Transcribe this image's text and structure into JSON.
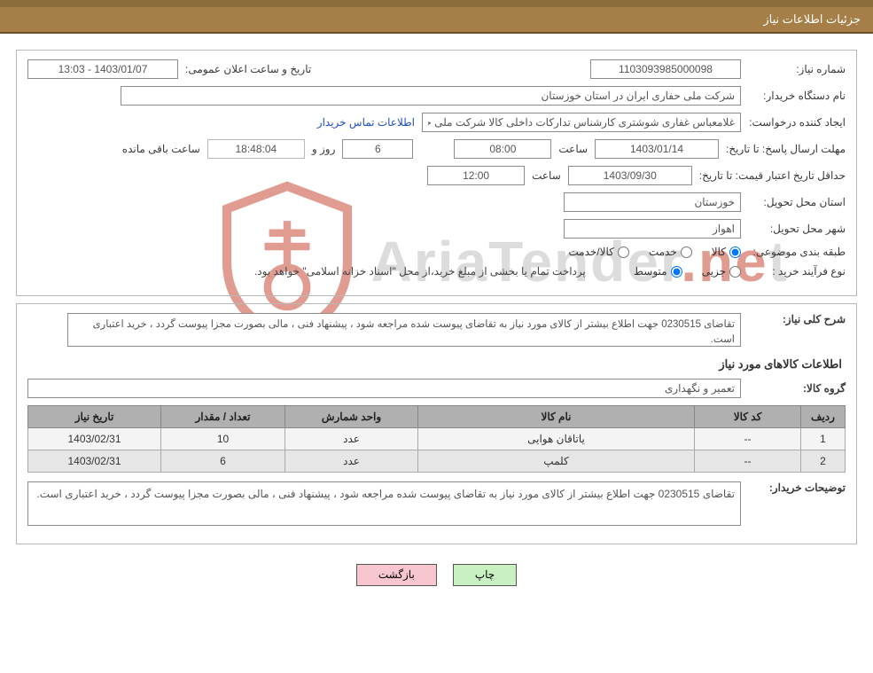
{
  "header": {
    "title": "جزئیات اطلاعات نیاز"
  },
  "need": {
    "number_label": "شماره نیاز:",
    "number": "1103093985000098",
    "announce_label": "تاریخ و ساعت اعلان عمومی:",
    "announce": "1403/01/07 - 13:03",
    "buyer_label": "نام دستگاه خریدار:",
    "buyer": "شرکت ملی حفاری ایران در استان خوزستان",
    "creator_label": "ایجاد کننده درخواست:",
    "creator": "غلامعباس غفاری شوشتری کارشناس تدارکات داخلی کالا شرکت ملی حفاری ا",
    "contact_link": "اطلاعات تماس خریدار",
    "deadline_label": "مهلت ارسال پاسخ:",
    "to_label": "تا تاریخ:",
    "deadline_date": "1403/01/14",
    "time_label": "ساعت",
    "deadline_time": "08:00",
    "days_value": "6",
    "days_suffix": "روز و",
    "countdown": "18:48:04",
    "remaining": "ساعت باقی مانده",
    "validity_label": "حداقل تاریخ اعتبار قیمت:",
    "validity_date": "1403/09/30",
    "validity_time": "12:00",
    "province_label": "استان محل تحویل:",
    "province": "خوزستان",
    "city_label": "شهر محل تحویل:",
    "city": "اهواز",
    "subject_class_label": "طبقه بندی موضوعی:",
    "radio_kala": "کالا",
    "radio_khedmat": "خدمت",
    "radio_kala_khedmat": "کالا/خدمت",
    "purchase_type_label": "نوع فرآیند خرید :",
    "radio_jozi": "جزیی",
    "radio_motavaset": "متوسط",
    "purchase_note": "پرداخت تمام یا بخشی از مبلغ خرید،از محل \"اسناد خزانه اسلامی\" خواهد بود."
  },
  "details": {
    "general_label": "شرح کلی نیاز:",
    "general": "تقاضای 0230515 جهت اطلاع بیشتر از کالای مورد نیاز به تقاضای پیوست شده مراجعه شود ، پیشنهاد فنی ، مالی بصورت مجزا پیوست گردد ، خرید اعتباری است.",
    "items_heading": "اطلاعات کالاهای مورد نیاز",
    "group_label": "گروه کالا:",
    "group": "تعمیر و نگهداری",
    "columns": {
      "row": "ردیف",
      "code": "کد کالا",
      "name": "نام کالا",
      "unit": "واحد شمارش",
      "qty": "تعداد / مقدار",
      "date": "تاریخ نیاز"
    },
    "rows": [
      {
        "row": "1",
        "code": "--",
        "name": "یاتاقان هوایی",
        "unit": "عدد",
        "qty": "10",
        "date": "1403/02/31"
      },
      {
        "row": "2",
        "code": "--",
        "name": "کلمپ",
        "unit": "عدد",
        "qty": "6",
        "date": "1403/02/31"
      }
    ],
    "notes_label": "توضیحات خریدار:",
    "notes": "تقاضای 0230515 جهت اطلاع بیشتر از کالای مورد نیاز به تقاضای پیوست شده مراجعه شود ، پیشنهاد فنی ، مالی بصورت مجزا پیوست گردد ، خرید اعتباری است."
  },
  "buttons": {
    "print": "چاپ",
    "back": "بازگشت"
  },
  "watermark": {
    "text_prefix": "AriaTender",
    "text_accent": ".ne",
    "text_suffix": "t",
    "shield_color": "#c94d3a",
    "gray": "#c0c0c0"
  },
  "colors": {
    "header_bg": "#a57f47",
    "border": "#b8b8b8",
    "th_bg": "#b0b0b0",
    "btn_print": "#c8f0c1",
    "btn_back": "#f7c6d0"
  }
}
